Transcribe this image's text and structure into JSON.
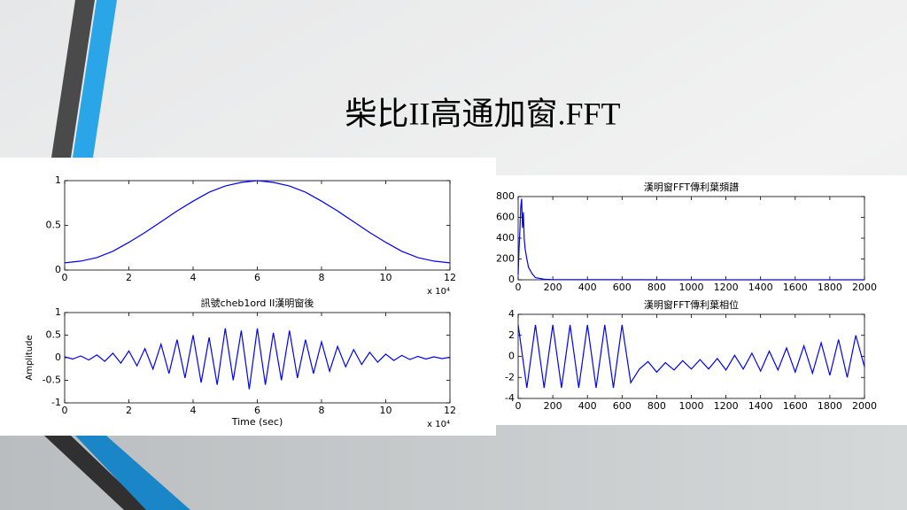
{
  "title": "柴比II高通加窗.FFT",
  "chart_data": [
    {
      "type": "line",
      "x": [
        0,
        0.5,
        1,
        1.5,
        2,
        2.5,
        3,
        3.5,
        4,
        4.5,
        5,
        5.5,
        6,
        6.5,
        7,
        7.5,
        8,
        8.5,
        9,
        9.5,
        10,
        10.5,
        11,
        11.5,
        12
      ],
      "values": [
        0.08,
        0.1,
        0.14,
        0.21,
        0.31,
        0.42,
        0.54,
        0.66,
        0.77,
        0.87,
        0.94,
        0.98,
        1,
        0.98,
        0.94,
        0.87,
        0.77,
        0.66,
        0.54,
        0.42,
        0.31,
        0.21,
        0.14,
        0.1,
        0.08
      ],
      "color": "#0000ff",
      "xlim": [
        0,
        12
      ],
      "xticks": [
        0,
        2,
        4,
        6,
        8,
        10,
        12
      ],
      "ylim": [
        0,
        1
      ],
      "yticks": [
        0,
        0.5,
        1
      ],
      "annotation": "x 10⁴"
    },
    {
      "type": "line",
      "title": "訊號cheb1ord II漢明窗後",
      "x_label": "Time (sec)",
      "y_label": "Amplitude",
      "x": [
        0,
        0.25,
        0.5,
        0.75,
        1,
        1.25,
        1.5,
        1.75,
        2,
        2.25,
        2.5,
        2.75,
        3,
        3.25,
        3.5,
        3.75,
        4,
        4.25,
        4.5,
        4.75,
        5,
        5.25,
        5.5,
        5.75,
        6,
        6.25,
        6.5,
        6.75,
        7,
        7.25,
        7.5,
        7.75,
        8,
        8.25,
        8.5,
        8.75,
        9,
        9.25,
        9.5,
        9.75,
        10,
        10.25,
        10.5,
        10.75,
        11,
        11.25,
        11.5,
        11.75,
        12
      ],
      "values": [
        0.02,
        -0.03,
        0.04,
        -0.05,
        0.06,
        -0.08,
        0.1,
        -0.12,
        0.15,
        -0.18,
        0.2,
        -0.25,
        0.3,
        -0.35,
        0.4,
        -0.45,
        0.5,
        -0.55,
        0.45,
        -0.6,
        0.65,
        -0.5,
        0.6,
        -0.7,
        0.65,
        -0.6,
        0.55,
        -0.5,
        0.6,
        -0.45,
        0.4,
        -0.35,
        0.35,
        -0.3,
        0.25,
        -0.2,
        0.18,
        -0.15,
        0.12,
        -0.1,
        0.08,
        -0.06,
        0.05,
        -0.04,
        0.03,
        -0.03,
        0.02,
        -0.02,
        0.01
      ],
      "color": "#0000ff",
      "xlim": [
        0,
        12
      ],
      "xticks": [
        0,
        2,
        4,
        6,
        8,
        10,
        12
      ],
      "ylim": [
        -1,
        1
      ],
      "yticks": [
        -1,
        -0.5,
        0,
        0.5,
        1
      ],
      "annotation": "x 10⁴"
    },
    {
      "type": "line",
      "title": "漢明窗FFT傳利葉頻譜",
      "x": [
        0,
        5,
        10,
        15,
        20,
        25,
        30,
        35,
        40,
        50,
        60,
        80,
        100,
        150,
        200,
        500,
        1000,
        1500,
        2000
      ],
      "values": [
        50,
        300,
        480,
        700,
        780,
        500,
        650,
        400,
        300,
        200,
        120,
        60,
        20,
        5,
        2,
        1,
        0,
        0,
        0
      ],
      "color": "#0000ff",
      "xlim": [
        0,
        2000
      ],
      "xticks": [
        0,
        200,
        400,
        600,
        800,
        1000,
        1200,
        1400,
        1600,
        1800,
        2000
      ],
      "ylim": [
        0,
        800
      ],
      "yticks": [
        0,
        200,
        400,
        600,
        800
      ]
    },
    {
      "type": "line",
      "title": "漢明窗FFT傳利葉相位",
      "x": [
        0,
        50,
        100,
        150,
        200,
        250,
        300,
        350,
        400,
        450,
        500,
        550,
        600,
        650,
        700,
        750,
        800,
        850,
        900,
        950,
        1000,
        1050,
        1100,
        1150,
        1200,
        1250,
        1300,
        1350,
        1400,
        1450,
        1500,
        1550,
        1600,
        1650,
        1700,
        1750,
        1800,
        1850,
        1900,
        1950,
        2000
      ],
      "values": [
        3,
        -3,
        3,
        -3,
        3,
        -3,
        3,
        -3,
        3,
        -3,
        3,
        -3,
        3,
        -2.5,
        -1.2,
        -0.5,
        -1.5,
        -0.6,
        -1.3,
        -0.4,
        -1.2,
        -0.3,
        -1.2,
        -0.2,
        -1.3,
        0.1,
        -1.2,
        0.3,
        -1.4,
        0.5,
        -1.3,
        0.8,
        -1.5,
        1,
        -1.6,
        1.3,
        -1.8,
        1.6,
        -2,
        2,
        -1
      ],
      "color": "#0000ff",
      "xlim": [
        0,
        2000
      ],
      "xticks": [
        0,
        200,
        400,
        600,
        800,
        1000,
        1200,
        1400,
        1600,
        1800,
        2000
      ],
      "ylim": [
        -4,
        4
      ],
      "yticks": [
        -4,
        -2,
        0,
        2,
        4
      ]
    }
  ]
}
